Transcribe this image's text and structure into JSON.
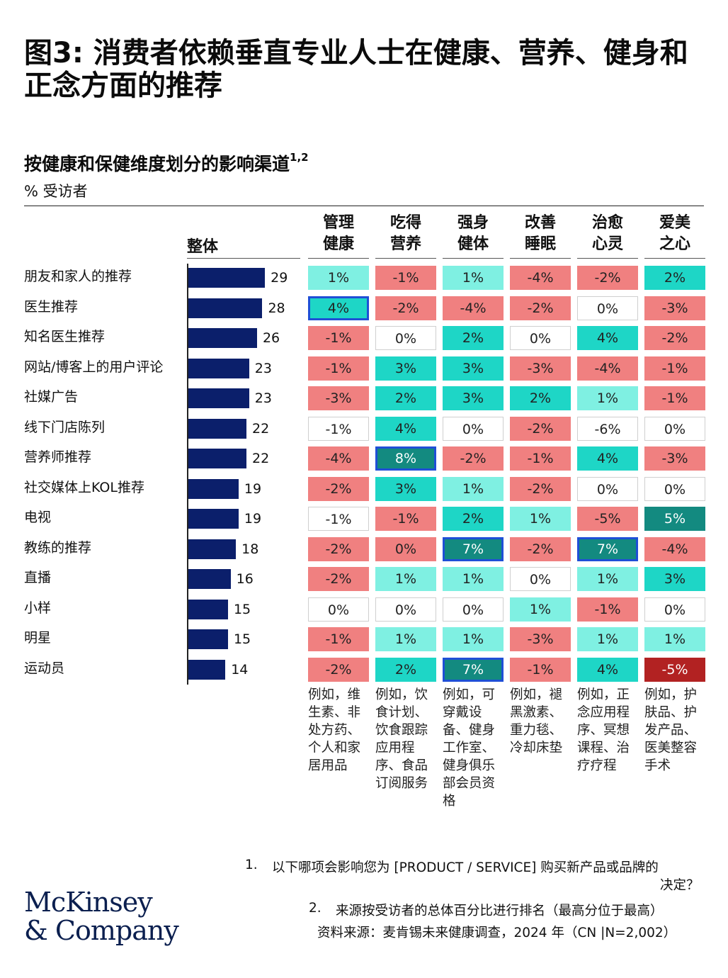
{
  "title": "图3: 消费者依赖垂直专业人士在健康、营养、健身和正念方面的推荐",
  "subtitle": "按健康和保健维度划分的影响渠道",
  "subtitle_sup": "1,2",
  "unit_label": "% 受访者",
  "overall_header": "整体",
  "colors": {
    "bar": "#0b1f6b",
    "neg_light": "#f08080",
    "neg_dark": "#b22222",
    "neutral": "#ffffff",
    "pos_light": "#7ff0e2",
    "pos_mid": "#1ed6c6",
    "pos_dark": "#138a80",
    "highlight_border": "#1f4fd6"
  },
  "chart_data": {
    "type": "table",
    "rows": [
      "朋友和家人的推荐",
      "医生推荐",
      "知名医生推荐",
      "网站/博客上的用户评论",
      "社媒广告",
      "线下门店陈列",
      "营养师推荐",
      "社交媒体上KOL推荐",
      "电视",
      "教练的推荐",
      "直播",
      "小样",
      "明星",
      "运动员"
    ],
    "overall": [
      29,
      28,
      26,
      23,
      23,
      22,
      22,
      19,
      19,
      18,
      16,
      15,
      15,
      14
    ],
    "columns": [
      {
        "header": "管理\n健康",
        "example": "例如，维生素、非处方药、个人和家居用品",
        "values": [
          "1%",
          "4%",
          "-1%",
          "-1%",
          "-3%",
          "-1%",
          "-4%",
          "-2%",
          "-1%",
          "-2%",
          "-2%",
          "0%",
          "-1%",
          "-2%"
        ],
        "shade": [
          "pl",
          "pm",
          "nl",
          "nl",
          "nl",
          "n",
          "nl",
          "nl",
          "n",
          "nl",
          "nl",
          "n",
          "nl",
          "nl"
        ],
        "highlight": [
          false,
          true,
          false,
          false,
          false,
          false,
          false,
          false,
          false,
          false,
          false,
          false,
          false,
          false
        ]
      },
      {
        "header": "吃得\n营养",
        "example": "例如，饮食计划、饮食跟踪应用程序、食品订阅服务",
        "values": [
          "-1%",
          "-2%",
          "0%",
          "3%",
          "2%",
          "4%",
          "8%",
          "3%",
          "-1%",
          "0%",
          "1%",
          "0%",
          "1%",
          "2%"
        ],
        "shade": [
          "nl",
          "nl",
          "n",
          "pm",
          "pm",
          "pm",
          "pd",
          "pm",
          "nl",
          "nl",
          "pl",
          "n",
          "pl",
          "pm"
        ],
        "highlight": [
          false,
          false,
          false,
          false,
          false,
          false,
          true,
          false,
          false,
          false,
          false,
          false,
          false,
          false
        ]
      },
      {
        "header": "强身\n健体",
        "example": "例如，可穿戴设备、健身工作室、健身俱乐部会员资格",
        "values": [
          "1%",
          "-4%",
          "2%",
          "3%",
          "3%",
          "0%",
          "-2%",
          "1%",
          "2%",
          "7%",
          "1%",
          "0%",
          "1%",
          "7%"
        ],
        "shade": [
          "pl",
          "nl",
          "pm",
          "pm",
          "pm",
          "n",
          "nl",
          "pl",
          "pm",
          "pd",
          "pl",
          "n",
          "pl",
          "pd"
        ],
        "highlight": [
          false,
          false,
          false,
          false,
          false,
          false,
          false,
          false,
          false,
          true,
          false,
          false,
          false,
          true
        ]
      },
      {
        "header": "改善\n睡眠",
        "example": "例如，褪黑激素、重力毯、冷却床垫",
        "values": [
          "-4%",
          "-2%",
          "0%",
          "-3%",
          "2%",
          "-2%",
          "-1%",
          "-2%",
          "1%",
          "-2%",
          "0%",
          "1%",
          "-3%",
          "-1%"
        ],
        "shade": [
          "nl",
          "nl",
          "n",
          "nl",
          "pm",
          "nl",
          "nl",
          "nl",
          "pl",
          "nl",
          "n",
          "pl",
          "nl",
          "nl"
        ],
        "highlight": [
          false,
          false,
          false,
          false,
          false,
          false,
          false,
          false,
          false,
          false,
          false,
          false,
          false,
          false
        ]
      },
      {
        "header": "治愈\n心灵",
        "example": "例如，正念应用程序、冥想课程、治疗疗程",
        "values": [
          "-2%",
          "0%",
          "4%",
          "-4%",
          "1%",
          "-6%",
          "4%",
          "0%",
          "-5%",
          "7%",
          "1%",
          "-1%",
          "1%",
          "4%"
        ],
        "shade": [
          "nl",
          "n",
          "pm",
          "nl",
          "pl",
          "n",
          "pm",
          "n",
          "nl",
          "pd",
          "pl",
          "nl",
          "pl",
          "pm"
        ],
        "highlight": [
          false,
          false,
          false,
          false,
          false,
          false,
          false,
          false,
          false,
          true,
          false,
          false,
          false,
          false
        ]
      },
      {
        "header": "爱美\n之心",
        "example": "例如，护肤品、护发产品、医美整容手术",
        "values": [
          "2%",
          "-3%",
          "-2%",
          "-1%",
          "-1%",
          "0%",
          "-3%",
          "0%",
          "5%",
          "-4%",
          "3%",
          "0%",
          "1%",
          "-5%"
        ],
        "shade": [
          "pm",
          "nl",
          "nl",
          "nl",
          "nl",
          "n",
          "nl",
          "n",
          "pd",
          "nl",
          "pm",
          "n",
          "pl",
          "nd"
        ],
        "highlight": [
          false,
          false,
          false,
          false,
          false,
          false,
          false,
          false,
          false,
          false,
          false,
          false,
          false,
          false
        ]
      }
    ]
  },
  "footnotes": {
    "fn1_num": "1.",
    "fn1_line1": "以下哪项会影响您为 [PRODUCT / SERVICE] 购买新产品或品牌的",
    "fn1_line2": "决定？",
    "fn2_num": "2.",
    "fn2": "来源按受访者的总体百分比进行排名（最高分位于最高）",
    "source": "资料来源：麦肯锡未来健康调查，2024 年（CN |N=2,002）"
  },
  "logo": {
    "line1": "McKinsey",
    "line2": "& Company"
  }
}
